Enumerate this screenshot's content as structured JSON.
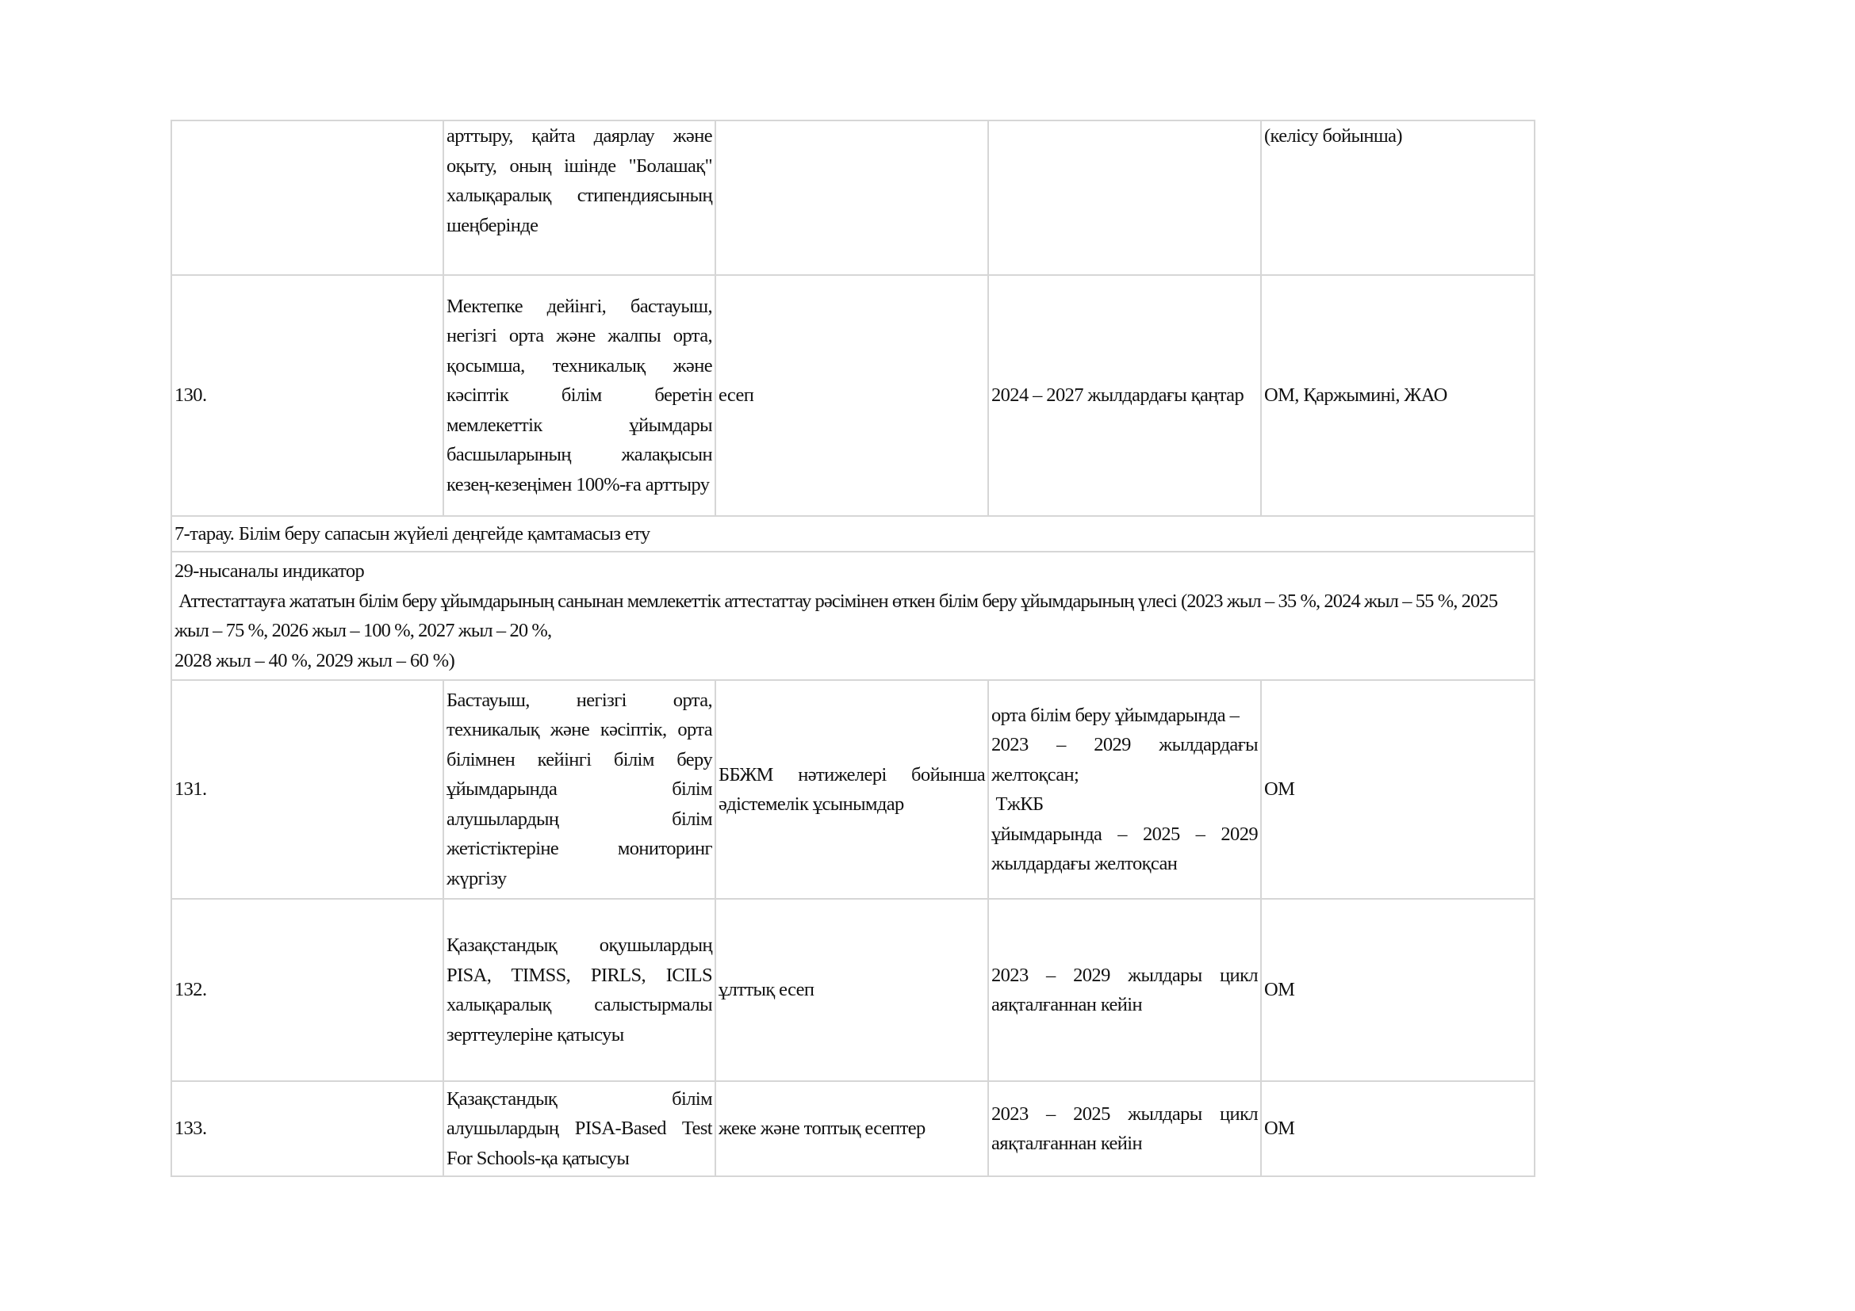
{
  "rows": [
    {
      "num": "",
      "action": "арттыру, қайта даярлау және оқыту, оның ішінде \"Болашақ\" халықаралық стипендиясының шеңберінде",
      "form": "",
      "deadline": "",
      "responsible": "(келісу бойынша)"
    },
    {
      "num": "130.",
      "action": "Мектепке дейінгі, бастауыш, негізгі орта және жалпы орта, қосымша, техникалық және кәсіптік білім беретін мемлекеттік ұйымдары басшыларының жалақысын кезең-кезеңімен 100%-ға арттыру",
      "form": "есеп",
      "deadline": "2024 – 2027 жылдардағы қаңтар",
      "responsible": "ОМ, Қаржымині, ЖАО"
    }
  ],
  "section": "7-тарау. Білім беру сапасын жүйелі деңгейде қамтамасыз ету",
  "indicator": {
    "title": "29-нысаналы индикатор",
    "line1": " Аттестаттауға жататын білім беру ұйымдарының санынан мемлекеттік аттестаттау рәсімінен өткен білім беру ұйымдарының үлесі (2023 жыл – 35 %, 2024 жыл – 55 %, 2025 жыл – 75 %, 2026 жыл – 100 %, 2027 жыл – 20 %,",
    "line2": "2028 жыл – 40 %, 2029 жыл – 60 %)"
  },
  "rows2": [
    {
      "num": "131.",
      "action": "Бастауыш, негізгі орта, техникалық және кәсіптік, орта білімнен кейінгі білім беру ұйымдарында білім алушылардың білім жетістіктеріне мониторинг жүргізу",
      "form": "ББЖМ нәтижелері бойынша әдістемелік ұсынымдар",
      "deadline_a": "орта білім беру ұйымдарында –",
      "deadline_b": "2023 – 2029 жылдардағы желтоқсан;",
      "deadline_c": " ТжКБ",
      "deadline_d": "ұйымдарында – 2025 – 2029 жылдардағы желтоқсан",
      "responsible": "ОМ"
    },
    {
      "num": "132.",
      "action": "Қазақстандық оқушылардың PISA, TIMSS, PIRLS, ICILS халықаралық салыстырмалы зерттеулеріне қатысуы",
      "form": "ұлттық есеп",
      "deadline": "2023 – 2029 жылдары цикл аяқталғаннан кейін",
      "responsible": "ОМ"
    },
    {
      "num": "133.",
      "action": "Қазақстандық білім алушылардың PISA-Based Test For Schools-қа қатысуы",
      "form": "жеке және топтық есептер",
      "deadline": "2023 – 2025 жылдары цикл аяқталғаннан кейін",
      "responsible": "ОМ"
    }
  ]
}
